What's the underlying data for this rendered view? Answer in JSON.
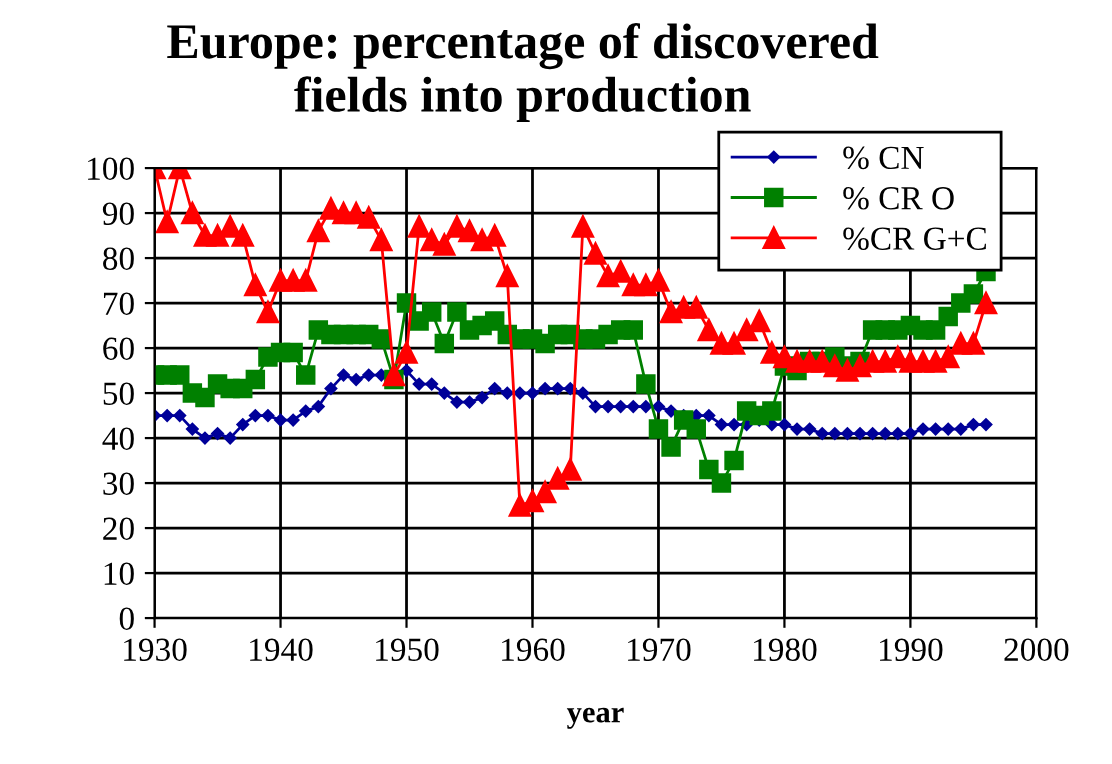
{
  "chart_data": {
    "type": "line",
    "title": "Europe: percentage of discovered\nfields into production",
    "xlabel": "year",
    "x": [
      1930,
      1931,
      1932,
      1933,
      1934,
      1935,
      1936,
      1937,
      1938,
      1939,
      1940,
      1941,
      1942,
      1943,
      1944,
      1945,
      1946,
      1947,
      1948,
      1949,
      1950,
      1951,
      1952,
      1953,
      1954,
      1955,
      1956,
      1957,
      1958,
      1959,
      1960,
      1961,
      1962,
      1963,
      1964,
      1965,
      1966,
      1967,
      1968,
      1969,
      1970,
      1971,
      1972,
      1973,
      1974,
      1975,
      1976,
      1977,
      1978,
      1979,
      1980,
      1981,
      1982,
      1983,
      1984,
      1985,
      1986,
      1987,
      1988,
      1989,
      1990,
      1991,
      1992,
      1993,
      1994,
      1995,
      1996
    ],
    "series": [
      {
        "name": "% CN",
        "color": "#000099",
        "marker": "diamond",
        "values": [
          45,
          45,
          45,
          42,
          40,
          41,
          40,
          43,
          45,
          45,
          44,
          44,
          46,
          47,
          51,
          54,
          53,
          54,
          54,
          null,
          55,
          52,
          52,
          50,
          48,
          48,
          49,
          51,
          50,
          50,
          50,
          51,
          51,
          51,
          50,
          47,
          47,
          47,
          47,
          47,
          47,
          46,
          45,
          45,
          45,
          43,
          43,
          43,
          44,
          43,
          43,
          42,
          42,
          41,
          41,
          41,
          41,
          41,
          41,
          41,
          41,
          42,
          42,
          42,
          42,
          43,
          43
        ]
      },
      {
        "name": "% CR O",
        "color": "#008000",
        "marker": "square",
        "values": [
          54,
          54,
          54,
          50,
          49,
          52,
          51,
          51,
          53,
          58,
          59,
          59,
          54,
          64,
          63,
          63,
          63,
          63,
          62,
          53,
          70,
          66,
          68,
          61,
          68,
          64,
          65,
          66,
          63,
          62,
          62,
          61,
          63,
          63,
          62,
          62,
          63,
          64,
          64,
          52,
          42,
          38,
          44,
          42,
          33,
          30,
          35,
          46,
          45,
          46,
          56,
          55,
          57,
          57,
          58,
          56,
          57,
          64,
          64,
          64,
          65,
          64,
          64,
          67,
          70,
          72,
          77
        ]
      },
      {
        "name": "%CR G+C",
        "color": "#ff0000",
        "marker": "triangle",
        "values": [
          100,
          88,
          100,
          90,
          85,
          85,
          87,
          85,
          74,
          68,
          75,
          75,
          75,
          86,
          91,
          90,
          90,
          89,
          84,
          54,
          59,
          87,
          84,
          83,
          87,
          86,
          84,
          85,
          76,
          25,
          26,
          28,
          31,
          33,
          87,
          81,
          76,
          77,
          74,
          74,
          75,
          68,
          69,
          69,
          64,
          61,
          61,
          64,
          66,
          59,
          58,
          57,
          57,
          57,
          56,
          55,
          56,
          57,
          57,
          58,
          57,
          57,
          57,
          58,
          61,
          61,
          70
        ]
      }
    ],
    "xlim": [
      1930,
      2000
    ],
    "xticks": [
      1930,
      1940,
      1950,
      1960,
      1970,
      1980,
      1990,
      2000
    ],
    "ylim": [
      0,
      100
    ],
    "yticks": [
      0,
      10,
      20,
      30,
      40,
      50,
      60,
      70,
      80,
      90,
      100
    ],
    "grid": true,
    "legend": "top right"
  }
}
